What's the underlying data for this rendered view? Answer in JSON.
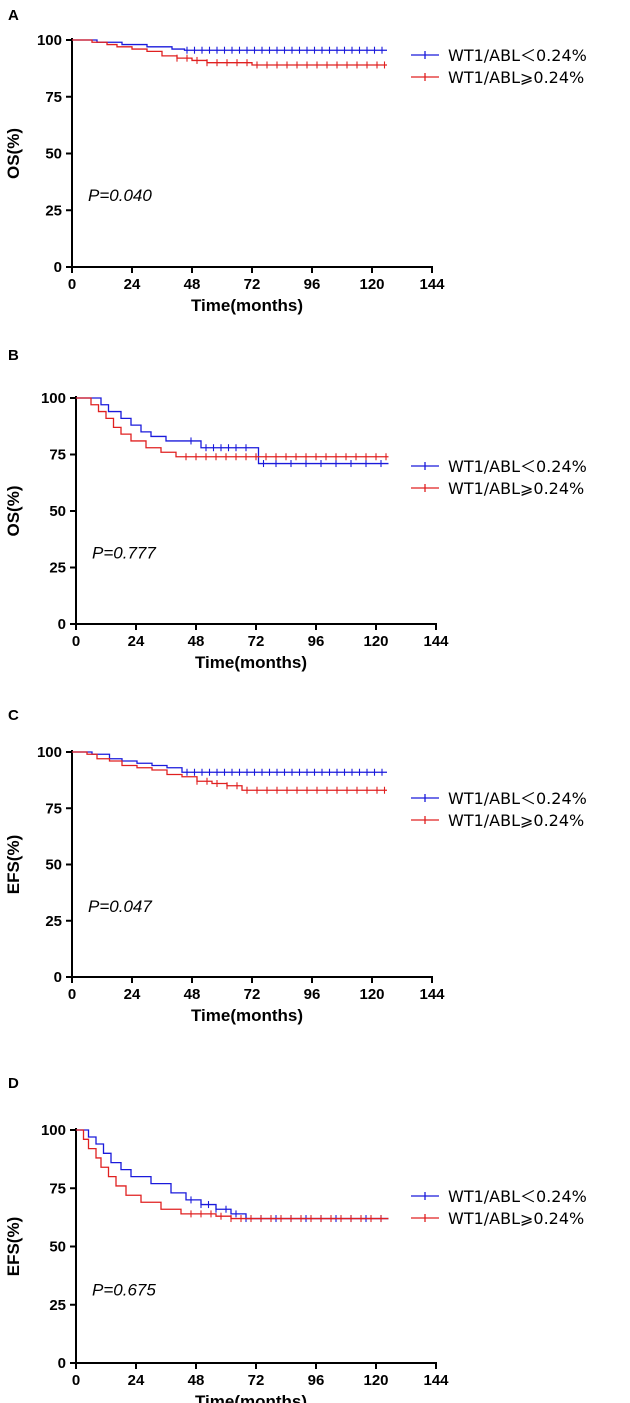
{
  "colors": {
    "low": "#1a1adb",
    "high": "#e02020",
    "axis": "#000000"
  },
  "chart_data": [
    {
      "type": "line",
      "panel": "A",
      "ylabel": "OS(%)",
      "xlabel": "Time(months)",
      "xlim": [
        0,
        144
      ],
      "ylim": [
        0,
        100
      ],
      "xticks": [
        0,
        24,
        48,
        72,
        96,
        120,
        144
      ],
      "yticks": [
        0,
        25,
        50,
        75,
        100
      ],
      "annotation": "P=0.040",
      "legend": [
        "WT1/ABL＜0.24%",
        "WT1/ABL⩾0.24%"
      ],
      "series": [
        {
          "name": "WT1/ABL＜0.24%",
          "color": "#1a1adb",
          "x": [
            0,
            10,
            20,
            30,
            40,
            45,
            126
          ],
          "y": [
            100,
            99,
            98,
            97,
            96,
            95.5,
            95.5
          ],
          "censor": [
            46,
            49,
            52,
            55,
            58,
            61,
            64,
            67,
            70,
            73,
            76,
            79,
            82,
            85,
            88,
            91,
            94,
            97,
            100,
            103,
            106,
            109,
            112,
            115,
            118,
            121,
            124
          ]
        },
        {
          "name": "WT1/ABL⩾0.24%",
          "color": "#e02020",
          "x": [
            0,
            8,
            14,
            18,
            24,
            30,
            36,
            42,
            48,
            54,
            72,
            126
          ],
          "y": [
            100,
            99,
            98,
            97,
            96,
            95,
            93,
            92,
            91,
            90,
            89,
            89
          ],
          "censor": [
            42,
            46,
            50,
            54,
            58,
            62,
            66,
            70,
            74,
            78,
            82,
            86,
            90,
            94,
            98,
            102,
            106,
            110,
            114,
            118,
            122,
            125
          ]
        }
      ]
    },
    {
      "type": "line",
      "panel": "B",
      "ylabel": "OS(%)",
      "xlabel": "Time(months)",
      "xlim": [
        0,
        144
      ],
      "ylim": [
        0,
        100
      ],
      "xticks": [
        0,
        24,
        48,
        72,
        96,
        120,
        144
      ],
      "yticks": [
        0,
        25,
        50,
        75,
        100
      ],
      "annotation": "P=0.777",
      "legend": [
        "WT1/ABL＜0.24%",
        "WT1/ABL⩾0.24%"
      ],
      "series": [
        {
          "name": "WT1/ABL＜0.24%",
          "color": "#1a1adb",
          "x": [
            0,
            10,
            13,
            18,
            22,
            26,
            30,
            36,
            50,
            72,
            73,
            125
          ],
          "y": [
            100,
            97,
            94,
            91,
            88,
            85,
            83,
            81,
            78,
            78,
            71,
            71
          ],
          "censor": [
            46,
            52,
            55,
            58,
            61,
            64,
            68,
            75,
            80,
            86,
            92,
            98,
            104,
            110,
            116,
            122
          ]
        },
        {
          "name": "WT1/ABL⩾0.24%",
          "color": "#e02020",
          "x": [
            0,
            6,
            9,
            12,
            15,
            18,
            22,
            28,
            34,
            40,
            125
          ],
          "y": [
            100,
            97,
            94,
            91,
            87,
            84,
            81,
            78,
            76,
            74,
            74
          ],
          "censor": [
            44,
            48,
            52,
            56,
            60,
            64,
            68,
            72,
            76,
            80,
            84,
            88,
            92,
            96,
            100,
            104,
            108,
            112,
            116,
            120,
            124
          ]
        }
      ]
    },
    {
      "type": "line",
      "panel": "C",
      "ylabel": "EFS(%)",
      "xlabel": "Time(months)",
      "xlim": [
        0,
        144
      ],
      "ylim": [
        0,
        100
      ],
      "xticks": [
        0,
        24,
        48,
        72,
        96,
        120,
        144
      ],
      "yticks": [
        0,
        25,
        50,
        75,
        100
      ],
      "annotation": "P=0.047",
      "legend": [
        "WT1/ABL＜0.24%",
        "WT1/ABL⩾0.24%"
      ],
      "series": [
        {
          "name": "WT1/ABL＜0.24%",
          "color": "#1a1adb",
          "x": [
            0,
            8,
            15,
            20,
            26,
            32,
            38,
            44,
            126
          ],
          "y": [
            100,
            99,
            97,
            96,
            95,
            94,
            93,
            91,
            91
          ],
          "censor": [
            46,
            49,
            52,
            55,
            58,
            61,
            64,
            67,
            70,
            73,
            76,
            79,
            82,
            85,
            88,
            91,
            94,
            97,
            100,
            103,
            106,
            109,
            112,
            115,
            118,
            121,
            124
          ]
        },
        {
          "name": "WT1/ABL⩾0.24%",
          "color": "#e02020",
          "x": [
            0,
            6,
            10,
            15,
            20,
            26,
            32,
            38,
            44,
            50,
            56,
            62,
            68,
            126
          ],
          "y": [
            100,
            99,
            97,
            96,
            94,
            93,
            92,
            90,
            89,
            87,
            86,
            85,
            83,
            83
          ],
          "censor": [
            50,
            54,
            58,
            62,
            66,
            70,
            74,
            78,
            82,
            86,
            90,
            94,
            98,
            102,
            106,
            110,
            114,
            118,
            122,
            125
          ]
        }
      ]
    },
    {
      "type": "line",
      "panel": "D",
      "ylabel": "EFS(%)",
      "xlabel": "Time(months)",
      "xlim": [
        0,
        144
      ],
      "ylim": [
        0,
        100
      ],
      "xticks": [
        0,
        24,
        48,
        72,
        96,
        120,
        144
      ],
      "yticks": [
        0,
        25,
        50,
        75,
        100
      ],
      "annotation": "P=0.675",
      "legend": [
        "WT1/ABL＜0.24%",
        "WT1/ABL⩾0.24%"
      ],
      "series": [
        {
          "name": "WT1/ABL＜0.24%",
          "color": "#1a1adb",
          "x": [
            0,
            5,
            8,
            11,
            14,
            18,
            22,
            30,
            38,
            44,
            50,
            56,
            62,
            68,
            125
          ],
          "y": [
            100,
            97,
            94,
            90,
            86,
            83,
            80,
            77,
            73,
            70,
            68,
            66,
            64,
            62,
            62
          ],
          "censor": [
            46,
            50,
            53,
            56,
            60,
            64,
            68,
            74,
            80,
            86,
            92,
            98,
            104,
            110,
            116,
            122
          ]
        },
        {
          "name": "WT1/ABL⩾0.24%",
          "color": "#e02020",
          "x": [
            0,
            3,
            5,
            8,
            10,
            13,
            16,
            20,
            26,
            34,
            42,
            56,
            62,
            125
          ],
          "y": [
            100,
            96,
            92,
            88,
            84,
            80,
            76,
            72,
            69,
            66,
            64,
            63,
            62,
            62
          ],
          "censor": [
            46,
            50,
            54,
            58,
            62,
            66,
            70,
            74,
            78,
            82,
            86,
            90,
            94,
            98,
            102,
            106,
            110,
            114,
            118,
            122
          ]
        }
      ]
    }
  ]
}
